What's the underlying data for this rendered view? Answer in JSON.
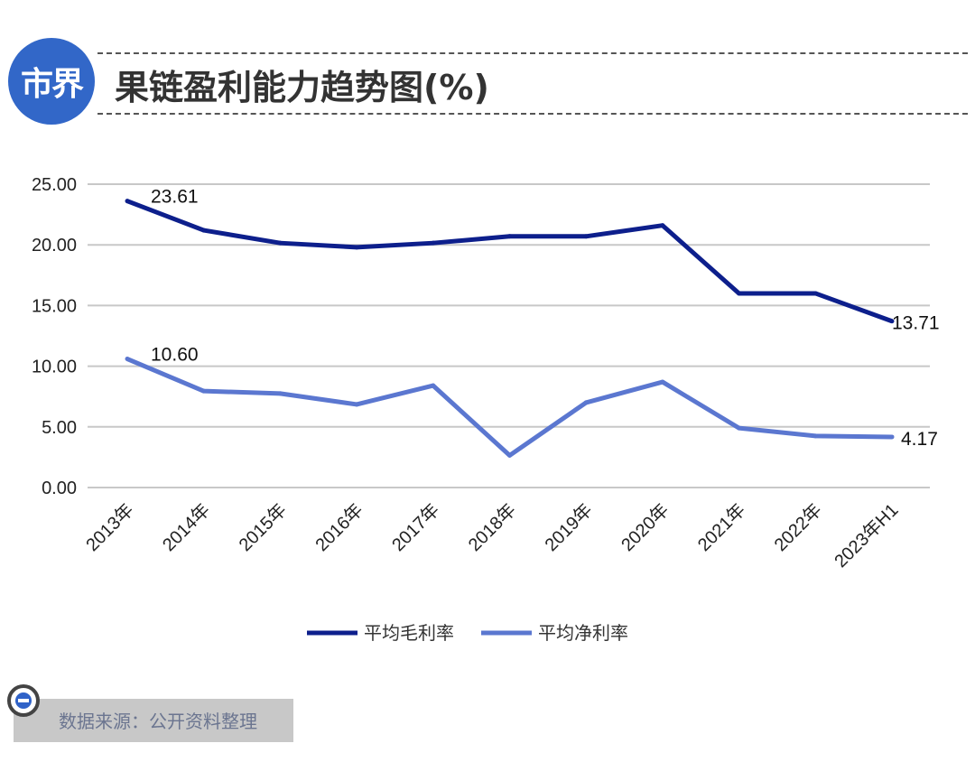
{
  "header": {
    "logo_text": "市界",
    "title": "果链盈利能力趋势图(%)"
  },
  "footer": {
    "source": "数据来源：公开资料整理"
  },
  "chart_data": {
    "type": "line",
    "title": "果链盈利能力趋势图(%)",
    "categories": [
      "2013年",
      "2014年",
      "2015年",
      "2016年",
      "2017年",
      "2018年",
      "2019年",
      "2020年",
      "2021年",
      "2022年",
      "2023年H1"
    ],
    "ylim": [
      0,
      25
    ],
    "yticks": [
      "0.00",
      "5.00",
      "10.00",
      "15.00",
      "20.00",
      "25.00"
    ],
    "grid": true,
    "legend_position": "bottom",
    "series": [
      {
        "name": "平均毛利率",
        "color": "#0d1f8c",
        "values": [
          23.61,
          21.2,
          20.15,
          19.8,
          20.15,
          20.7,
          20.7,
          21.6,
          16.0,
          16.0,
          13.71
        ],
        "labels": {
          "0": "23.61",
          "10": "13.71"
        }
      },
      {
        "name": "平均净利率",
        "color": "#5b77d0",
        "values": [
          10.6,
          7.95,
          7.75,
          6.85,
          8.4,
          2.65,
          7.0,
          8.7,
          4.9,
          4.25,
          4.17
        ],
        "labels": {
          "0": "10.60",
          "10": "4.17"
        }
      }
    ]
  }
}
